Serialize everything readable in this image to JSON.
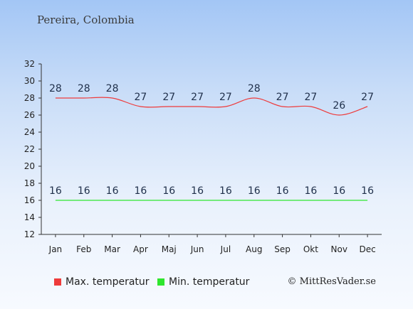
{
  "header": {
    "title": "Pereira, Colombia"
  },
  "legend": {
    "max_label": "Max. temperatur",
    "min_label": "Min. temperatur",
    "max_color": "#ee3b3b",
    "min_color": "#2ee62e"
  },
  "credit": "© MittResVader.se",
  "chart_data": {
    "type": "line",
    "title": "Pereira, Colombia",
    "categories": [
      "Jan",
      "Feb",
      "Mar",
      "Apr",
      "Maj",
      "Jun",
      "Jul",
      "Aug",
      "Sep",
      "Okt",
      "Nov",
      "Dec"
    ],
    "series": [
      {
        "name": "Max. temperatur",
        "values": [
          28,
          28,
          28,
          27,
          27,
          27,
          27,
          28,
          27,
          27,
          26,
          27
        ],
        "color": "#ee3b3b"
      },
      {
        "name": "Min. temperatur",
        "values": [
          16,
          16,
          16,
          16,
          16,
          16,
          16,
          16,
          16,
          16,
          16,
          16
        ],
        "color": "#2ee62e"
      }
    ],
    "ylim": [
      12,
      32
    ],
    "yticks": [
      12,
      14,
      16,
      18,
      20,
      22,
      24,
      26,
      28,
      30,
      32
    ],
    "grid": false,
    "legend_position": "bottom-left"
  }
}
